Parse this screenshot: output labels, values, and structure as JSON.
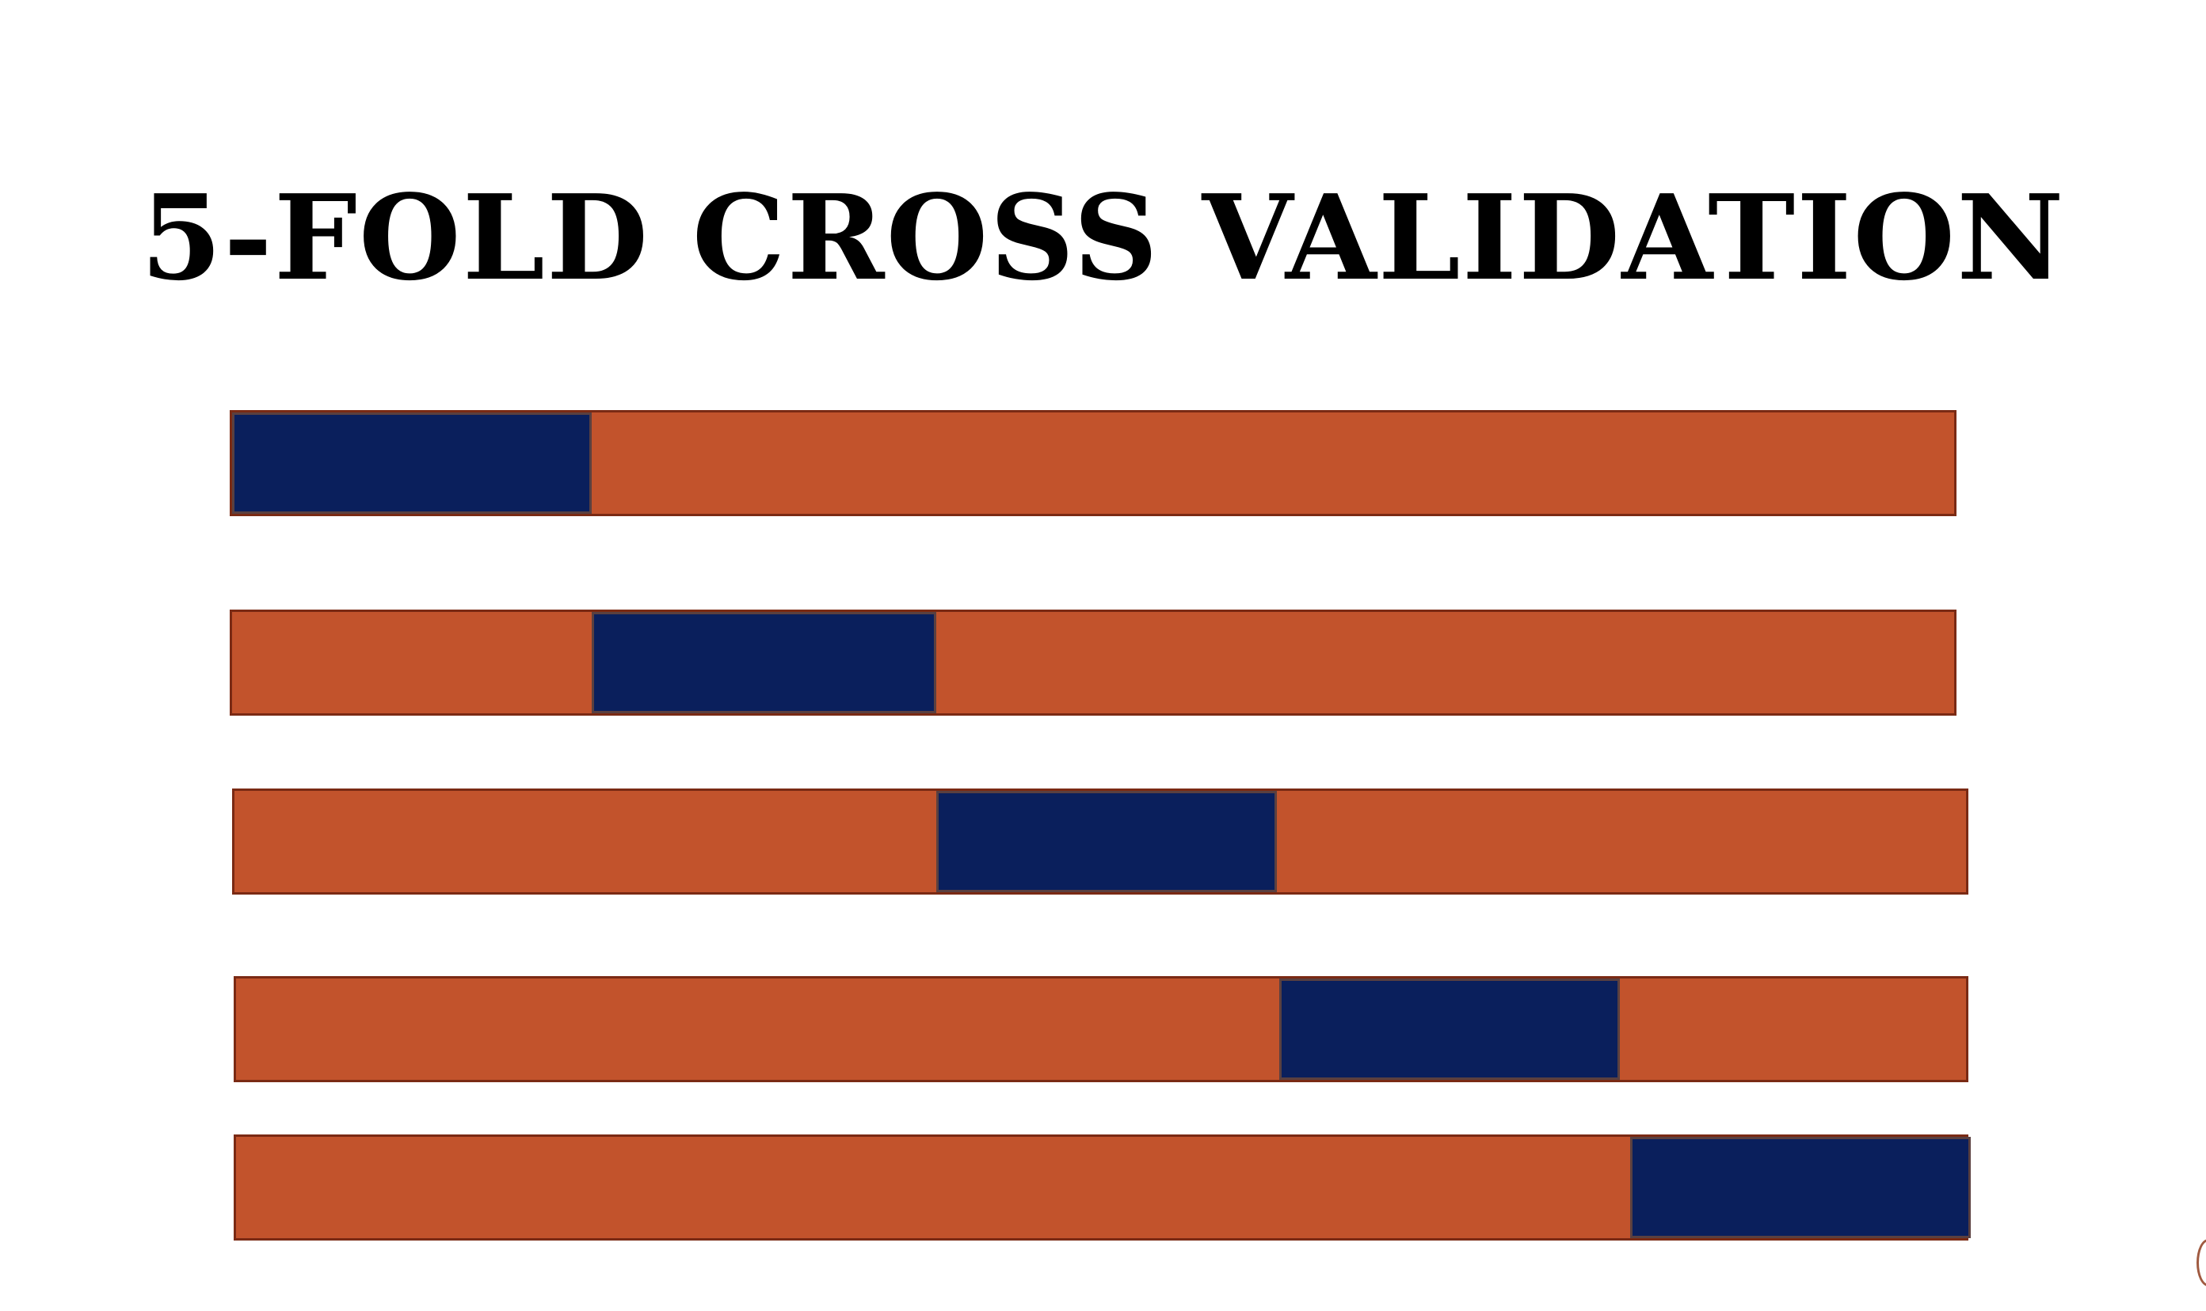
{
  "title": "5-FOLD CROSS VALIDATION",
  "colors": {
    "train": "#C2532C",
    "test": "#0A1F5C",
    "background": "#FFFFFF",
    "title": "#000000"
  },
  "diagram": {
    "num_folds": 5,
    "folds": [
      {
        "fold": 1,
        "test_segment": 1
      },
      {
        "fold": 2,
        "test_segment": 2
      },
      {
        "fold": 3,
        "test_segment": 3
      },
      {
        "fold": 4,
        "test_segment": 4
      },
      {
        "fold": 5,
        "test_segment": 5
      }
    ]
  }
}
